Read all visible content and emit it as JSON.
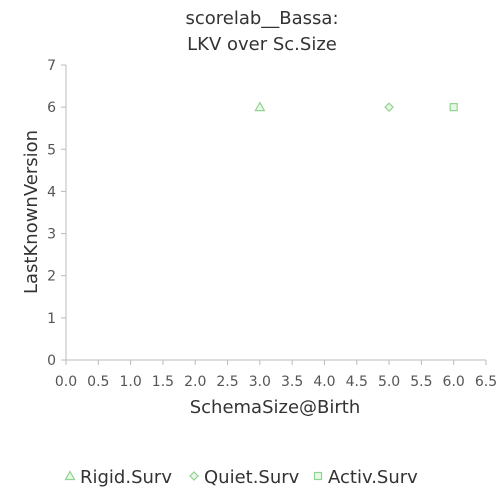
{
  "chart_data": {
    "type": "scatter",
    "title_lines": [
      "scorelab__Bassa:",
      "LKV over Sc.Size"
    ],
    "xlabel": "SchemaSize@Birth",
    "ylabel": "LastKnownVersion",
    "xlim": [
      0,
      6.5
    ],
    "ylim": [
      0,
      7
    ],
    "xticks": [
      "0.0",
      "0.5",
      "1.0",
      "1.5",
      "2.0",
      "2.5",
      "3.0",
      "3.5",
      "4.0",
      "4.5",
      "5.0",
      "5.5",
      "6.0",
      "6.5"
    ],
    "yticks": [
      "0",
      "1",
      "2",
      "3",
      "4",
      "5",
      "6",
      "7"
    ],
    "grid": false,
    "legend_position": "bottom",
    "series": [
      {
        "name": "Rigid.Surv",
        "marker": "triangle",
        "color": "#8fd48f",
        "points": [
          {
            "x": 3,
            "y": 6
          }
        ]
      },
      {
        "name": "Quiet.Surv",
        "marker": "diamond",
        "color": "#8fd48f",
        "points": [
          {
            "x": 5,
            "y": 6
          }
        ]
      },
      {
        "name": "Activ.Surv",
        "marker": "square",
        "color": "#8fd48f",
        "points": [
          {
            "x": 6,
            "y": 6
          }
        ]
      }
    ]
  }
}
